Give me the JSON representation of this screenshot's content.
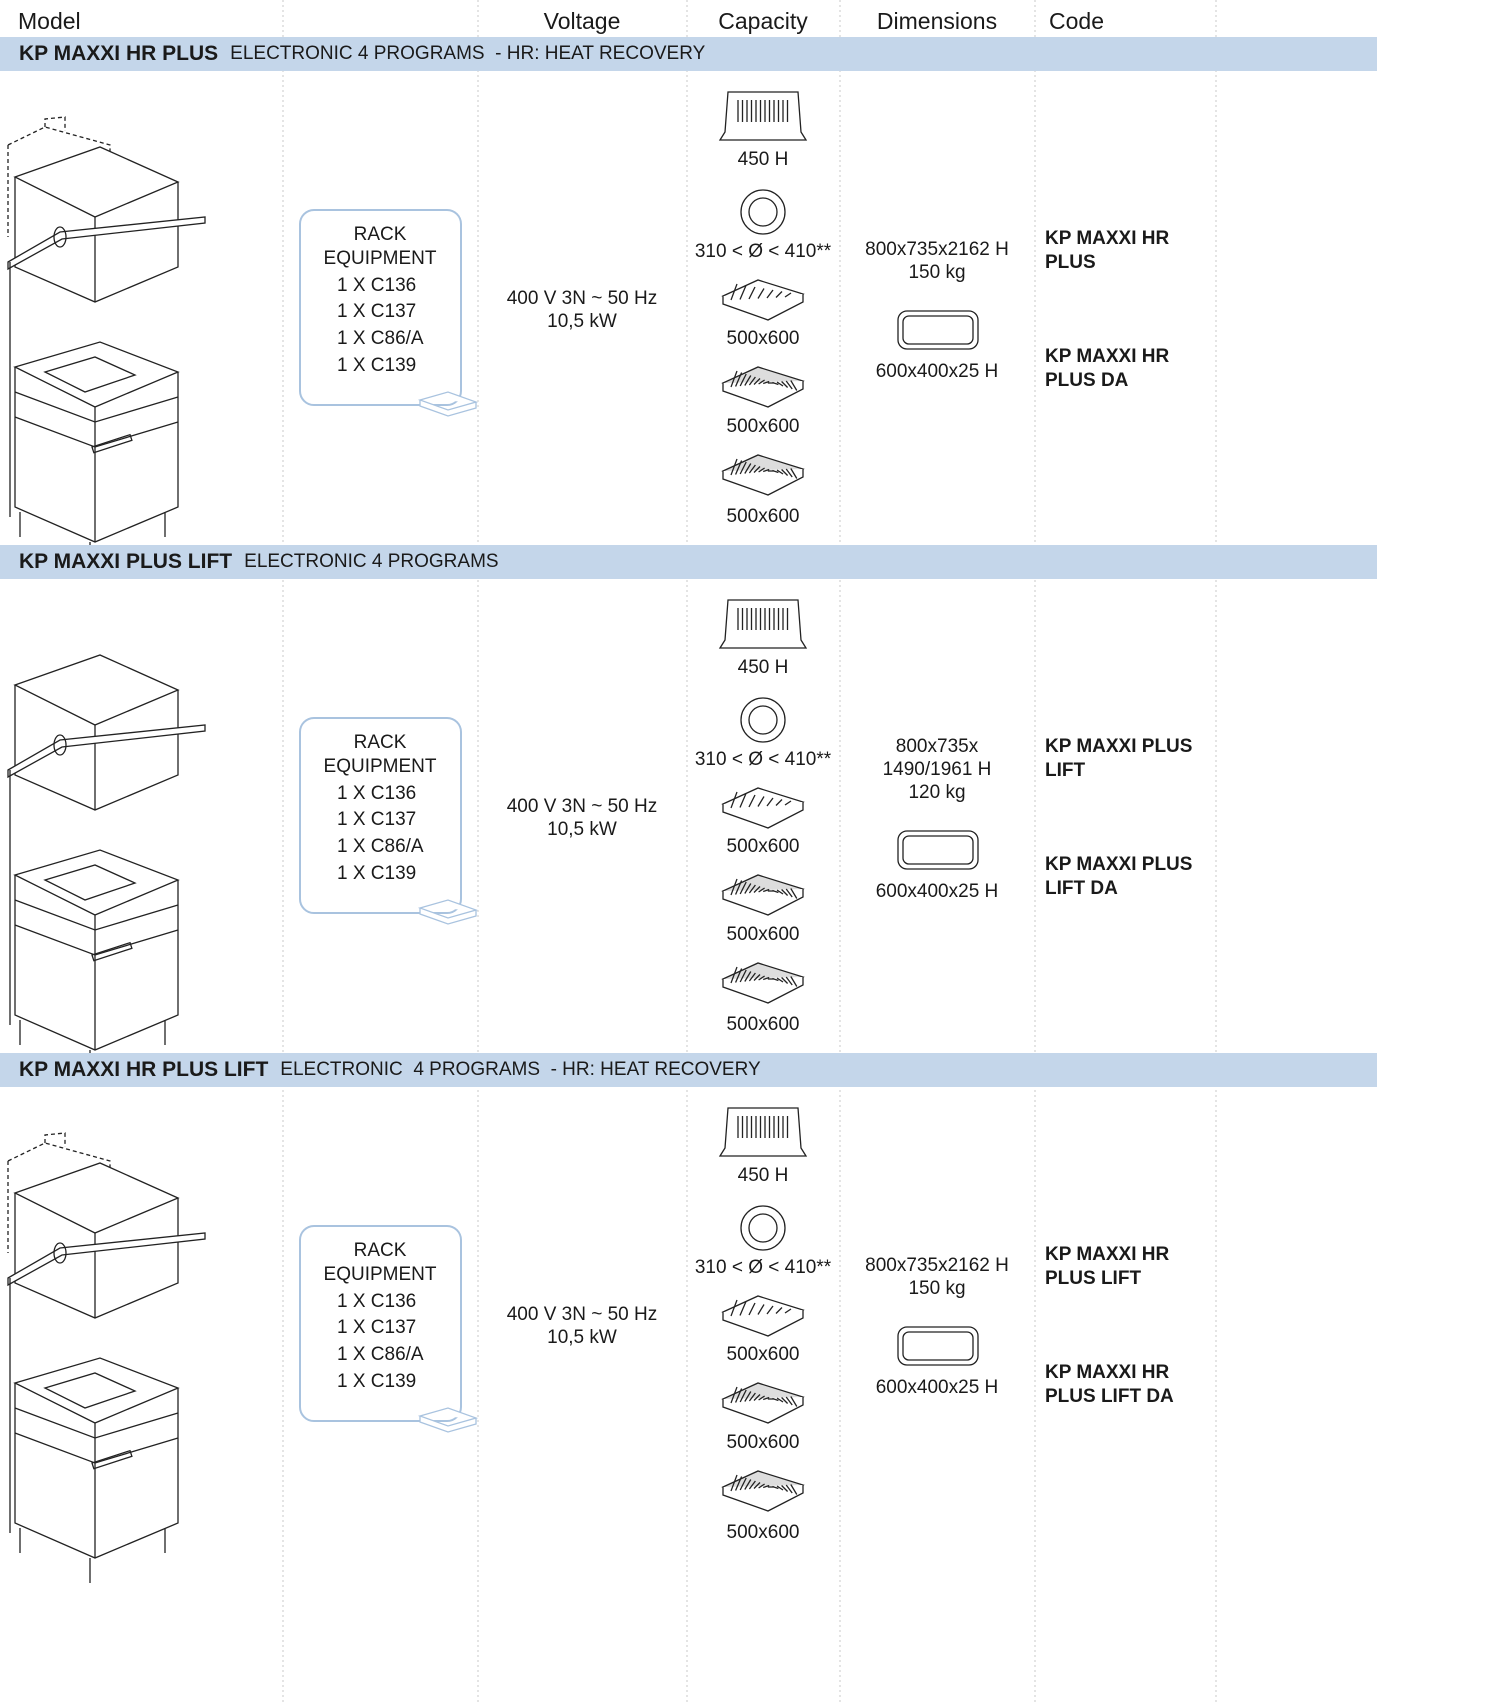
{
  "header": {
    "columns": [
      "Model",
      "Voltage",
      "Capacity",
      "Dimensions",
      "Code"
    ]
  },
  "sections": [
    {
      "model": "KP MAXXI HR PLUS",
      "description": "ELECTRONIC 4 PROGRAMS  - HR: HEAT RECOVERY",
      "rack": [
        "RACK",
        "EQUIPMENT",
        "1 X C136",
        "1 X C137",
        "1 X C86/A",
        "1 X C139"
      ],
      "voltage": [
        "400 V 3N ~ 50 Hz",
        "10,5 kW"
      ],
      "capacity": [
        "450 H",
        "310 < Ø < 410**",
        "500x600",
        "500x600",
        "500x600"
      ],
      "dimensions": [
        "800x735x2162 H",
        "150 kg"
      ],
      "tray": "600x400x25 H",
      "codes": [
        [
          "KP MAXXI HR",
          "PLUS"
        ],
        [
          "KP MAXXI HR",
          "PLUS DA"
        ]
      ]
    },
    {
      "model": "KP MAXXI PLUS LIFT",
      "description": "ELECTRONIC 4 PROGRAMS",
      "rack": [
        "RACK",
        "EQUIPMENT",
        "1 X C136",
        "1 X C137",
        "1 X C86/A",
        "1 X C139"
      ],
      "voltage": [
        "400 V 3N ~ 50 Hz",
        "10,5 kW"
      ],
      "capacity": [
        "450 H",
        "310 < Ø < 410**",
        "500x600",
        "500x600",
        "500x600"
      ],
      "dimensions": [
        "800x735x",
        "1490/1961 H",
        "120 kg"
      ],
      "tray": "600x400x25 H",
      "codes": [
        [
          "KP MAXXI PLUS",
          "LIFT"
        ],
        [
          "KP MAXXI PLUS",
          "LIFT DA"
        ]
      ]
    },
    {
      "model": "KP MAXXI HR PLUS LIFT",
      "description": "ELECTRONIC  4 PROGRAMS  - HR: HEAT RECOVERY",
      "rack": [
        "RACK",
        "EQUIPMENT",
        "1 X C136",
        "1 X C137",
        "1 X C86/A",
        "1 X C139"
      ],
      "voltage": [
        "400 V 3N ~ 50 Hz",
        "10,5 kW"
      ],
      "capacity": [
        "450 H",
        "310 < Ø < 410**",
        "500x600",
        "500x600",
        "500x600"
      ],
      "dimensions": [
        "800x735x2162 H",
        "150 kg"
      ],
      "tray": "600x400x25 H",
      "codes": [
        [
          "KP MAXXI HR",
          "PLUS LIFT"
        ],
        [
          "KP MAXXI HR",
          "PLUS LIFT DA"
        ]
      ]
    }
  ]
}
